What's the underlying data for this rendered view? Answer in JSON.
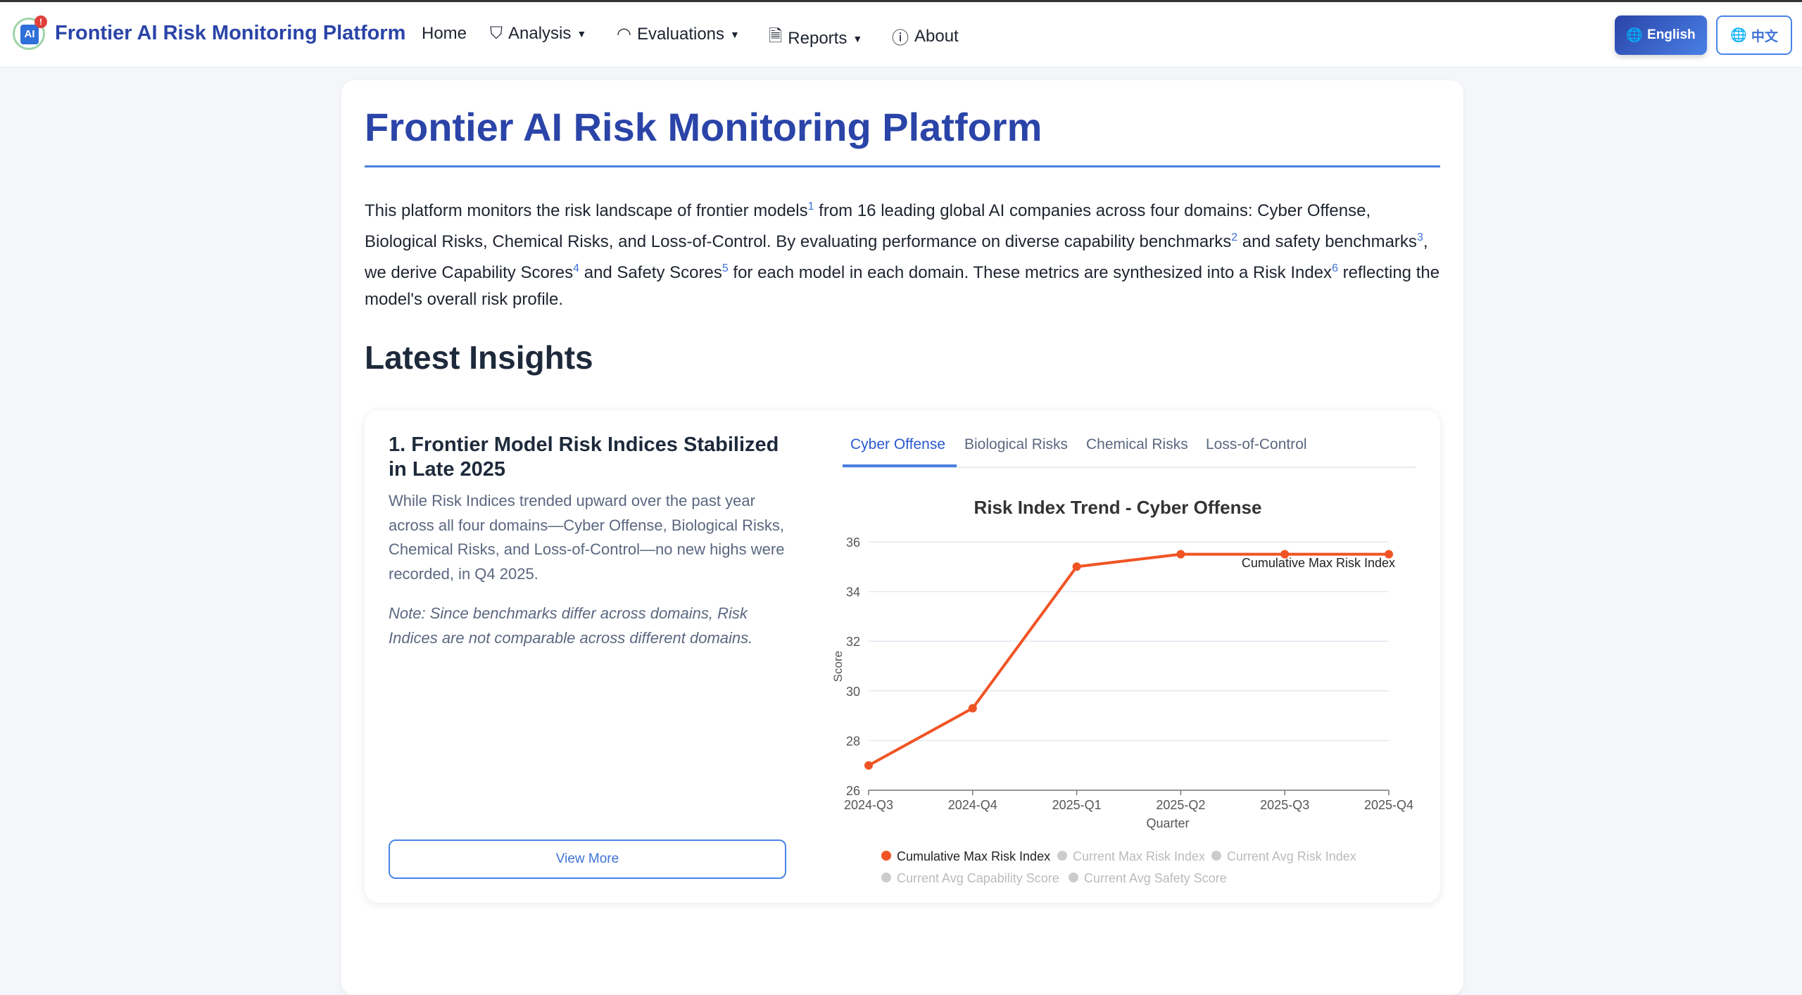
{
  "nav": {
    "brand": "Frontier AI Risk Monitoring Platform",
    "logo_text": "AI",
    "items": [
      {
        "label": "Home"
      },
      {
        "label": "Analysis"
      },
      {
        "label": "Evaluations"
      },
      {
        "label": "Reports"
      },
      {
        "label": "About"
      }
    ],
    "lang_en": "English",
    "lang_zh": "中文"
  },
  "page": {
    "title": "Frontier AI Risk Monitoring Platform",
    "intro": [
      {
        "t": "This platform monitors the risk landscape of frontier models",
        "s": "1"
      },
      {
        "t": " from 16 leading global AI companies across four domains: Cyber Offense, Biological Risks, Chemical Risks, and Loss-of-Control. By evaluating performance on diverse capability benchmarks",
        "s": "2"
      },
      {
        "t": " and safety benchmarks",
        "s": "3"
      },
      {
        "t": ", we derive Capability Scores",
        "s": "4"
      },
      {
        "t": " and Safety Scores",
        "s": "5"
      },
      {
        "t": " for each model in each domain. These metrics are synthesized into a Risk Index",
        "s": "6"
      },
      {
        "t": " reflecting the model's overall risk profile.",
        "s": ""
      }
    ],
    "insights_title": "Latest Insights"
  },
  "insight": {
    "title": "1. Frontier Model Risk Indices Stabilized in Late 2025",
    "body": "While Risk Indices trended upward over the past year across all four domains—Cyber Offense, Biological Risks, Chemical Risks, and Loss-of-Control—no new highs were recorded, in Q4 2025.",
    "note": "Note: Since benchmarks differ across domains, Risk Indices are not comparable across different domains.",
    "view_more": "View More",
    "tabs": [
      "Cyber Offense",
      "Biological Risks",
      "Chemical Risks",
      "Loss-of-Control"
    ],
    "active_tab": 0
  },
  "chart_data": {
    "type": "line",
    "title": "Risk Index Trend - Cyber Offense",
    "xlabel": "Quarter",
    "ylabel": "Score",
    "categories": [
      "2024-Q3",
      "2024-Q4",
      "2025-Q1",
      "2025-Q2",
      "2025-Q3",
      "2025-Q4"
    ],
    "ylim": [
      26,
      36
    ],
    "yticks": [
      26,
      28,
      30,
      32,
      34,
      36
    ],
    "grid": true,
    "series": [
      {
        "name": "Cumulative Max Risk Index",
        "values": [
          27.0,
          29.3,
          35.0,
          35.5,
          35.5,
          35.5
        ],
        "color": "#f05424",
        "visible": true
      },
      {
        "name": "Current Max Risk Index",
        "visible": false
      },
      {
        "name": "Current Avg Risk Index",
        "visible": false
      },
      {
        "name": "Current Avg Capability Score",
        "visible": false
      },
      {
        "name": "Current Avg Safety Score",
        "visible": false
      }
    ],
    "annotation": "Cumulative Max Risk Index",
    "legend_position": "bottom"
  }
}
